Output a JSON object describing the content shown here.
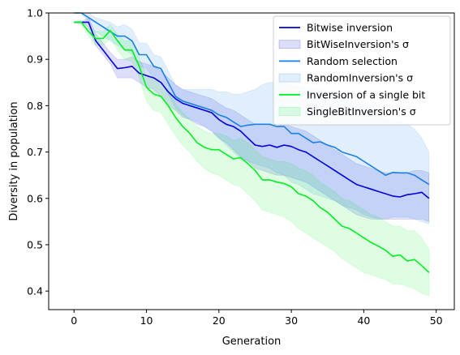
{
  "chart_data": {
    "type": "line",
    "title": "",
    "xlabel": "Generation",
    "ylabel": "Diversity in population",
    "xlim": [
      -3.5,
      52.5
    ],
    "ylim": [
      0.36,
      1.0
    ],
    "xticks": [
      0,
      10,
      20,
      30,
      40,
      50
    ],
    "yticks": [
      0.4,
      0.5,
      0.6,
      0.7,
      0.8,
      0.9,
      1.0
    ],
    "xtick_labels": [
      "0",
      "10",
      "20",
      "30",
      "40",
      "50"
    ],
    "ytick_labels": [
      "0.4",
      "0.5",
      "0.6",
      "0.7",
      "0.8",
      "0.9",
      "1.0"
    ],
    "legend_position": "top-right",
    "grid": false,
    "x": [
      0,
      1,
      2,
      3,
      4,
      5,
      6,
      7,
      8,
      9,
      10,
      11,
      12,
      13,
      14,
      15,
      16,
      17,
      18,
      19,
      20,
      21,
      22,
      23,
      24,
      25,
      26,
      27,
      28,
      29,
      30,
      31,
      32,
      33,
      34,
      35,
      36,
      37,
      38,
      39,
      40,
      41,
      42,
      43,
      44,
      45,
      46,
      47,
      48,
      49
    ],
    "series": [
      {
        "name": "Bitwise inversion",
        "color": "#0000dd",
        "values": [
          0.98,
          0.98,
          0.98,
          0.94,
          0.92,
          0.9,
          0.88,
          0.882,
          0.885,
          0.87,
          0.865,
          0.86,
          0.85,
          0.83,
          0.815,
          0.805,
          0.8,
          0.795,
          0.79,
          0.785,
          0.77,
          0.76,
          0.755,
          0.745,
          0.73,
          0.715,
          0.712,
          0.715,
          0.71,
          0.715,
          0.712,
          0.705,
          0.7,
          0.69,
          0.68,
          0.67,
          0.66,
          0.65,
          0.64,
          0.63,
          0.625,
          0.62,
          0.615,
          0.61,
          0.605,
          0.603,
          0.608,
          0.61,
          0.613,
          0.6
        ],
        "band_lower": [
          0.98,
          0.98,
          0.97,
          0.93,
          0.91,
          0.89,
          0.86,
          0.86,
          0.86,
          0.85,
          0.84,
          0.835,
          0.82,
          0.8,
          0.79,
          0.775,
          0.77,
          0.76,
          0.755,
          0.745,
          0.73,
          0.72,
          0.705,
          0.69,
          0.68,
          0.665,
          0.66,
          0.655,
          0.65,
          0.65,
          0.645,
          0.64,
          0.635,
          0.625,
          0.615,
          0.605,
          0.595,
          0.585,
          0.575,
          0.565,
          0.56,
          0.555,
          0.555,
          0.555,
          0.555,
          0.555,
          0.555,
          0.555,
          0.555,
          0.55
        ],
        "band_upper": [
          0.98,
          0.98,
          0.99,
          0.955,
          0.935,
          0.915,
          0.9,
          0.9,
          0.905,
          0.895,
          0.89,
          0.885,
          0.875,
          0.86,
          0.845,
          0.835,
          0.83,
          0.825,
          0.82,
          0.815,
          0.805,
          0.795,
          0.79,
          0.78,
          0.77,
          0.76,
          0.76,
          0.76,
          0.755,
          0.76,
          0.755,
          0.75,
          0.745,
          0.735,
          0.725,
          0.715,
          0.705,
          0.695,
          0.685,
          0.675,
          0.67,
          0.665,
          0.66,
          0.655,
          0.655,
          0.652,
          0.655,
          0.66,
          0.66,
          0.655
        ]
      },
      {
        "name": "Random selection",
        "color": "#1a80e6",
        "values": [
          1.0,
          1.0,
          0.99,
          0.98,
          0.97,
          0.96,
          0.95,
          0.95,
          0.94,
          0.91,
          0.91,
          0.885,
          0.88,
          0.85,
          0.82,
          0.81,
          0.805,
          0.8,
          0.795,
          0.79,
          0.78,
          0.775,
          0.765,
          0.755,
          0.758,
          0.76,
          0.76,
          0.76,
          0.755,
          0.755,
          0.74,
          0.74,
          0.73,
          0.72,
          0.722,
          0.715,
          0.71,
          0.7,
          0.695,
          0.69,
          0.68,
          0.67,
          0.66,
          0.65,
          0.656,
          0.655,
          0.655,
          0.65,
          0.64,
          0.63
        ],
        "band_lower": [
          1.0,
          1.0,
          0.98,
          0.96,
          0.95,
          0.94,
          0.93,
          0.92,
          0.91,
          0.885,
          0.88,
          0.86,
          0.85,
          0.825,
          0.795,
          0.78,
          0.77,
          0.765,
          0.755,
          0.745,
          0.73,
          0.715,
          0.7,
          0.685,
          0.68,
          0.675,
          0.67,
          0.665,
          0.655,
          0.65,
          0.635,
          0.63,
          0.62,
          0.61,
          0.605,
          0.6,
          0.595,
          0.585,
          0.58,
          0.575,
          0.565,
          0.56,
          0.555,
          0.555,
          0.56,
          0.56,
          0.56,
          0.555,
          0.55,
          0.545
        ],
        "band_upper": [
          1.0,
          1.0,
          1.0,
          0.99,
          0.985,
          0.98,
          0.97,
          0.975,
          0.965,
          0.935,
          0.935,
          0.91,
          0.905,
          0.875,
          0.845,
          0.835,
          0.835,
          0.835,
          0.835,
          0.835,
          0.83,
          0.83,
          0.825,
          0.825,
          0.83,
          0.835,
          0.845,
          0.85,
          0.85,
          0.85,
          0.845,
          0.84,
          0.84,
          0.835,
          0.835,
          0.83,
          0.83,
          0.82,
          0.815,
          0.81,
          0.8,
          0.79,
          0.78,
          0.77,
          0.77,
          0.765,
          0.76,
          0.75,
          0.73,
          0.7
        ]
      },
      {
        "name": "Inversion of a single bit",
        "color": "#00ee22",
        "values": [
          0.98,
          0.98,
          0.96,
          0.945,
          0.945,
          0.962,
          0.94,
          0.92,
          0.92,
          0.885,
          0.84,
          0.825,
          0.82,
          0.8,
          0.775,
          0.755,
          0.74,
          0.72,
          0.71,
          0.705,
          0.705,
          0.695,
          0.685,
          0.688,
          0.675,
          0.66,
          0.64,
          0.64,
          0.635,
          0.632,
          0.625,
          0.61,
          0.605,
          0.595,
          0.58,
          0.57,
          0.555,
          0.54,
          0.535,
          0.525,
          0.515,
          0.505,
          0.497,
          0.488,
          0.475,
          0.478,
          0.465,
          0.468,
          0.455,
          0.44
        ],
        "band_lower": [
          0.98,
          0.975,
          0.95,
          0.93,
          0.93,
          0.945,
          0.92,
          0.9,
          0.895,
          0.86,
          0.81,
          0.79,
          0.785,
          0.76,
          0.735,
          0.715,
          0.7,
          0.68,
          0.665,
          0.655,
          0.65,
          0.64,
          0.63,
          0.625,
          0.61,
          0.595,
          0.575,
          0.57,
          0.565,
          0.56,
          0.55,
          0.535,
          0.525,
          0.515,
          0.505,
          0.495,
          0.485,
          0.47,
          0.46,
          0.45,
          0.44,
          0.435,
          0.43,
          0.425,
          0.415,
          0.415,
          0.41,
          0.405,
          0.395,
          0.39
        ],
        "band_upper": [
          0.98,
          0.985,
          0.97,
          0.96,
          0.96,
          0.975,
          0.955,
          0.94,
          0.94,
          0.905,
          0.865,
          0.855,
          0.85,
          0.83,
          0.805,
          0.785,
          0.77,
          0.755,
          0.745,
          0.74,
          0.74,
          0.735,
          0.725,
          0.73,
          0.72,
          0.705,
          0.69,
          0.685,
          0.68,
          0.68,
          0.675,
          0.665,
          0.66,
          0.65,
          0.635,
          0.625,
          0.615,
          0.6,
          0.595,
          0.585,
          0.575,
          0.565,
          0.56,
          0.55,
          0.54,
          0.54,
          0.53,
          0.53,
          0.515,
          0.49
        ]
      }
    ],
    "legend": [
      {
        "label": "Bitwise inversion",
        "kind": "line",
        "color": "#0000dd"
      },
      {
        "label": "BitWiseInversion's σ",
        "kind": "patch",
        "color": "#0000dd"
      },
      {
        "label": "Random selection",
        "kind": "line",
        "color": "#1a80e6"
      },
      {
        "label": "RandomInversion's σ",
        "kind": "patch",
        "color": "#1a80e6"
      },
      {
        "label": "Inversion of a single bit",
        "kind": "line",
        "color": "#00ee22"
      },
      {
        "label": "SingleBitInversion's σ",
        "kind": "patch",
        "color": "#00ee22"
      }
    ]
  }
}
